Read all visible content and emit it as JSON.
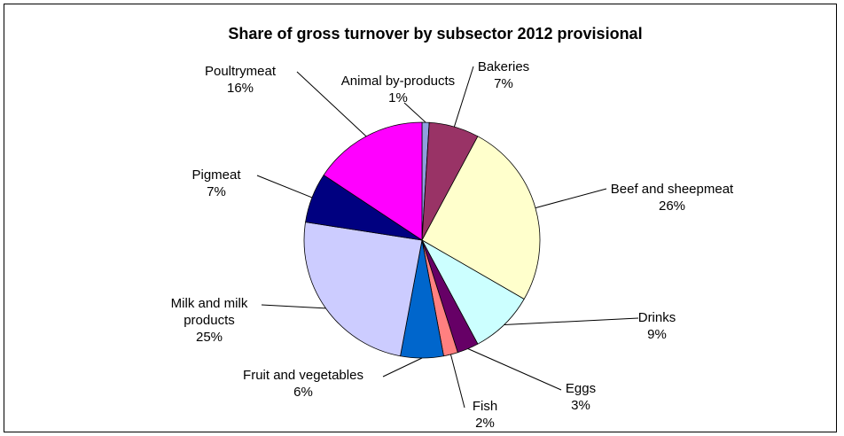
{
  "chart_data": {
    "type": "pie",
    "title": "Share of gross turnover by subsector 2012 provisional",
    "slices": [
      {
        "label": "Animal by-products",
        "value": 1,
        "label_text": "1%",
        "color": "#8fa0df"
      },
      {
        "label": "Bakeries",
        "value": 7,
        "label_text": "7%",
        "color": "#993366"
      },
      {
        "label": "Beef and sheepmeat",
        "value": 26,
        "label_text": "26%",
        "color": "#ffffcc"
      },
      {
        "label": "Drinks",
        "value": 9,
        "label_text": "9%",
        "color": "#ccffff"
      },
      {
        "label": "Eggs",
        "value": 3,
        "label_text": "3%",
        "color": "#660066"
      },
      {
        "label": "Fish",
        "value": 2,
        "label_text": "2%",
        "color": "#ff8080"
      },
      {
        "label": "Fruit and vegetables",
        "value": 6,
        "label_text": "6%",
        "color": "#0066cc"
      },
      {
        "label": "Milk and milk products",
        "value": 25,
        "label_text": "25%",
        "color": "#ccccff"
      },
      {
        "label": "Pigmeat",
        "value": 7,
        "label_text": "7%",
        "color": "#000080"
      },
      {
        "label": "Poultrymeat",
        "value": 16,
        "label_text": "16%",
        "color": "#ff00ff"
      }
    ],
    "legend": "none"
  }
}
